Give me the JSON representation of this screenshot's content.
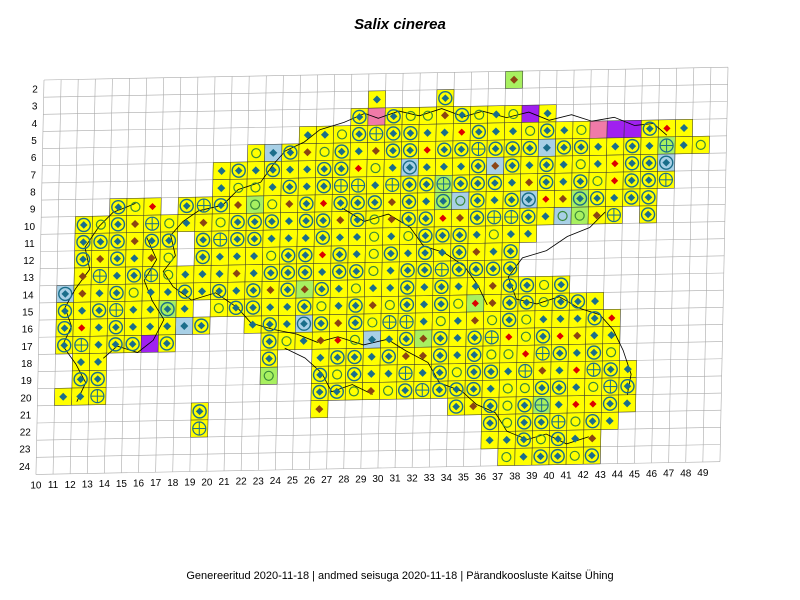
{
  "title": "Salix cinerea",
  "footer": "Genereeritud 2020-11-18  |  andmed seisuga 2020-11-18  |  Pärandkoosluste Kaitse Ühing",
  "grid": {
    "rows": [
      2,
      3,
      4,
      5,
      6,
      7,
      8,
      9,
      10,
      11,
      12,
      13,
      14,
      15,
      16,
      17,
      18,
      19,
      20,
      21,
      22,
      23,
      24
    ],
    "cols": [
      10,
      11,
      12,
      13,
      14,
      15,
      16,
      17,
      18,
      19,
      20,
      21,
      22,
      23,
      24,
      25,
      26,
      27,
      28,
      29,
      30,
      31,
      32,
      33,
      34,
      35,
      36,
      37,
      38,
      39,
      40,
      41,
      42,
      43,
      44,
      45,
      46,
      47,
      48,
      49
    ]
  },
  "colors": {
    "occupied": "#ffff00",
    "green": "#a8f060",
    "blue": "#a8d0e6",
    "pink": "#f07aa8",
    "purple": "#a020f0",
    "grid_line": "#aaaaaa",
    "cell_border": "#333333",
    "marker_teal": "#1a6e8a",
    "marker_brown": "#8b4513",
    "marker_red": "#dd0000",
    "marker_ring": "#3a8a3a",
    "coast": "#000000"
  },
  "legend_symbols": [
    "diamond",
    "diamond-in-ring",
    "open-circle",
    "ring-with-cross"
  ]
}
